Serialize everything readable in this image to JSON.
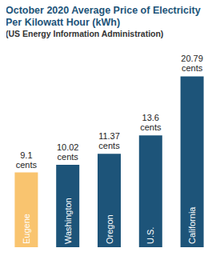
{
  "chart_data": {
    "type": "bar",
    "title": "October 2020 Average Price of Electricity Per Kilowatt Hour (kWh)",
    "subtitle": "(US Energy Information Administration)",
    "categories": [
      "Eugene",
      "Washington",
      "Oregon",
      "U.S.",
      "California"
    ],
    "values": [
      9.1,
      10.02,
      11.37,
      13.6,
      20.79
    ],
    "value_labels": [
      "9.1 cents",
      "10.02 cents",
      "11.37 cents",
      "13.6 cents",
      "20.79 cents"
    ],
    "colors": [
      "#f9c46f",
      "#1d5479",
      "#1d5479",
      "#1d5479",
      "#1d5479"
    ],
    "ylim": [
      0,
      22
    ],
    "yticks": [],
    "grid": false,
    "data_labels": true,
    "tick_labels": "x"
  }
}
